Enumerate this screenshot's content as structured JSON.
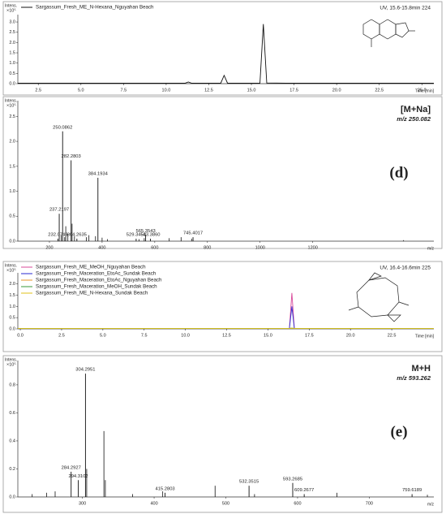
{
  "chart_data": [
    {
      "type": "line",
      "y_label": "Intens.",
      "y_multiplier": "×10⁵",
      "x_label": "Time [min]",
      "annotations": [
        "UV, 15.6-15.8min 224"
      ],
      "x": [
        1.3,
        11.1,
        11.3,
        11.5,
        13.2,
        13.4,
        13.6,
        15.5,
        15.7,
        15.9,
        17.0,
        25.7
      ],
      "series": [
        {
          "name": "Sargassum_Fresh_ME_N-Hexana_Nguyahan Beach",
          "color": "#111111",
          "values": [
            0.02,
            0.02,
            0.08,
            0.02,
            0.02,
            0.4,
            0.02,
            0.02,
            2.9,
            0.03,
            0.02,
            0.02
          ]
        }
      ],
      "xlim": [
        1.3,
        25.7
      ],
      "xticks": [
        2.5,
        {
          "value": 5,
          "label": "5.0"
        },
        7.5,
        {
          "value": 10,
          "label": "10.0"
        },
        12.5,
        {
          "value": 15,
          "label": "15.0"
        },
        17.5,
        {
          "value": 20,
          "label": "20.0"
        },
        22.5,
        {
          "value": 25,
          "label": "25.0"
        }
      ],
      "ylim": [
        0,
        3.2
      ],
      "yticks": [
        {
          "value": 0,
          "label": "0.0"
        },
        0.5,
        {
          "value": 1,
          "label": "1.0"
        },
        1.5,
        {
          "value": 2,
          "label": "2.0"
        },
        2.5,
        {
          "value": 3,
          "label": "3.0"
        }
      ]
    },
    {
      "type": "bar",
      "y_label": "Intens.",
      "y_multiplier": "×10⁵",
      "x_label": "m/z",
      "annotations": [
        "[M+Na]",
        "m/z 250.082",
        "(d)"
      ],
      "x": [
        232.0749,
        237.2197,
        250.0862,
        282.2803,
        304.2635,
        384.1934,
        529.3454,
        565.3543,
        583.386,
        745.4017
      ],
      "x_labels": [
        "232.0749",
        "237.2197",
        "250.0862",
        "282.2803",
        "304.2635",
        "384.1934",
        "529.3454",
        "565.3543",
        "583.3860",
        "745.4017"
      ],
      "values": [
        0.05,
        0.55,
        2.2,
        1.62,
        0.05,
        1.27,
        0.05,
        0.12,
        0.05,
        0.08
      ],
      "x_unlabeled": [
        245,
        258,
        262,
        270,
        286,
        295,
        340,
        350,
        375,
        400,
        420,
        540,
        560,
        655,
        700,
        740,
        1545
      ],
      "values_unlabeled": [
        0.12,
        0.08,
        0.3,
        0.15,
        0.35,
        0.1,
        0.08,
        0.12,
        0.1,
        0.07,
        0.04,
        0.04,
        0.06,
        0.06,
        0.08,
        0.05,
        0.02
      ],
      "color": "#111111",
      "xlim": [
        80,
        1660
      ],
      "xticks": [
        200,
        400,
        600,
        800,
        1000,
        1200
      ],
      "ylim": [
        0,
        2.75
      ],
      "yticks": [
        {
          "value": 0,
          "label": "0.0"
        },
        0.5,
        {
          "value": 1,
          "label": "1.0"
        },
        1.5,
        {
          "value": 2,
          "label": "2.0"
        },
        2.5
      ]
    },
    {
      "type": "line",
      "y_label": "Intens.",
      "y_multiplier": "×10⁵",
      "x_label": "Time [min]",
      "annotations": [
        "UV, 16.4-16.6min 225"
      ],
      "x": [
        -0.15,
        16.3,
        16.45,
        16.6,
        25.05
      ],
      "series": [
        {
          "name": "Sargassum_Fresh_ME_MeOH_Nguyahan Beach",
          "color": "#d9489a",
          "values": [
            0.02,
            0.02,
            1.6,
            0.02,
            0.02
          ]
        },
        {
          "name": "Sargassum_Fresh_Maceration_EtoAc_Sundak Beach",
          "color": "#2a2ad0",
          "values": [
            0.02,
            0.02,
            1.0,
            0.02,
            0.02
          ]
        },
        {
          "name": "Sargassum_Fresh_Maceration_EtoAc_Nguyahan Beach",
          "color": "#e8962a",
          "values": [
            0.02,
            0.02,
            0.03,
            0.02,
            0.02
          ]
        },
        {
          "name": "Sargassum_Fresh_Maceration_MeOH_Sundak Beach",
          "color": "#3a9a3a",
          "values": [
            0.02,
            0.02,
            0.03,
            0.02,
            0.02
          ]
        },
        {
          "name": "Sargassum_Fresh_ME_N-Hexana_Sundak Beach",
          "color": "#e0c21a",
          "values": [
            0.02,
            0.02,
            0.03,
            0.02,
            0.02
          ]
        }
      ],
      "xlim": [
        -0.15,
        25.05
      ],
      "xticks": [
        {
          "value": 0,
          "label": "0.0"
        },
        2.5,
        {
          "value": 5,
          "label": "5.0"
        },
        7.5,
        {
          "value": 10,
          "label": "10.0"
        },
        12.5,
        {
          "value": 15,
          "label": "15.0"
        },
        17.5,
        {
          "value": 20,
          "label": "20.0"
        },
        22.5
      ],
      "ylim": [
        0,
        2.35
      ],
      "yticks": [
        {
          "value": 0,
          "label": "0.0"
        },
        0.5,
        {
          "value": 1,
          "label": "1.0"
        },
        1.5,
        {
          "value": 2,
          "label": "2.0"
        }
      ]
    },
    {
      "type": "bar",
      "y_label": "Intens.",
      "y_multiplier": "×10⁵",
      "x_label": "m/z",
      "annotations": [
        "M+H",
        "m/z 593.262",
        "(e)"
      ],
      "x": [
        284.2927,
        294.3102,
        304.2951,
        415.2803,
        532.3515,
        593.2685,
        609.2677,
        759.6189
      ],
      "x_labels": [
        "284.2927",
        "294.3102",
        "304.2951",
        "415.2803",
        "532.3515",
        "593.2685",
        "609.2677",
        "759.6189"
      ],
      "values": [
        0.18,
        0.12,
        0.88,
        0.03,
        0.08,
        0.1,
        0.02,
        0.02
      ],
      "x_unlabeled": [
        230,
        250,
        262,
        306,
        330,
        332,
        370,
        412,
        485,
        540,
        655,
        781
      ],
      "values_unlabeled": [
        0.02,
        0.03,
        0.04,
        0.2,
        0.47,
        0.12,
        0.02,
        0.04,
        0.08,
        0.02,
        0.03,
        0.015
      ],
      "color": "#111111",
      "xlim": [
        210,
        790
      ],
      "xticks": [
        300,
        400,
        500,
        600,
        700
      ],
      "ylim": [
        0,
        0.95
      ],
      "yticks": [
        {
          "value": 0,
          "label": "0.0"
        },
        0.2,
        0.4,
        0.6,
        0.8
      ]
    }
  ]
}
